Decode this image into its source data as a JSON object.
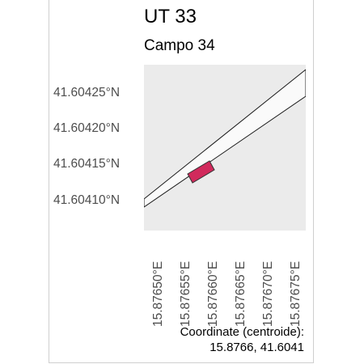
{
  "header": {
    "title": "UT 33",
    "subtitle": "Campo 34"
  },
  "map": {
    "y_axis_labels": [
      "41.60425°N",
      "41.60420°N",
      "41.60415°N",
      "41.60410°N"
    ],
    "x_axis_labels": [
      "15.87650°E",
      "15.87655°E",
      "15.87660°E",
      "15.87665°E",
      "15.87670°E",
      "15.87675°E"
    ],
    "colors": {
      "panel_background": "#ebebeb",
      "road_fill": "#fafafa",
      "road_stroke": "#1a1a1a",
      "parcel_fill": "#d12a5c",
      "parcel_stroke": "#333333"
    }
  },
  "footer": {
    "caption": "Coordinate (centroide):",
    "value": "15.8766, 41.6041"
  }
}
